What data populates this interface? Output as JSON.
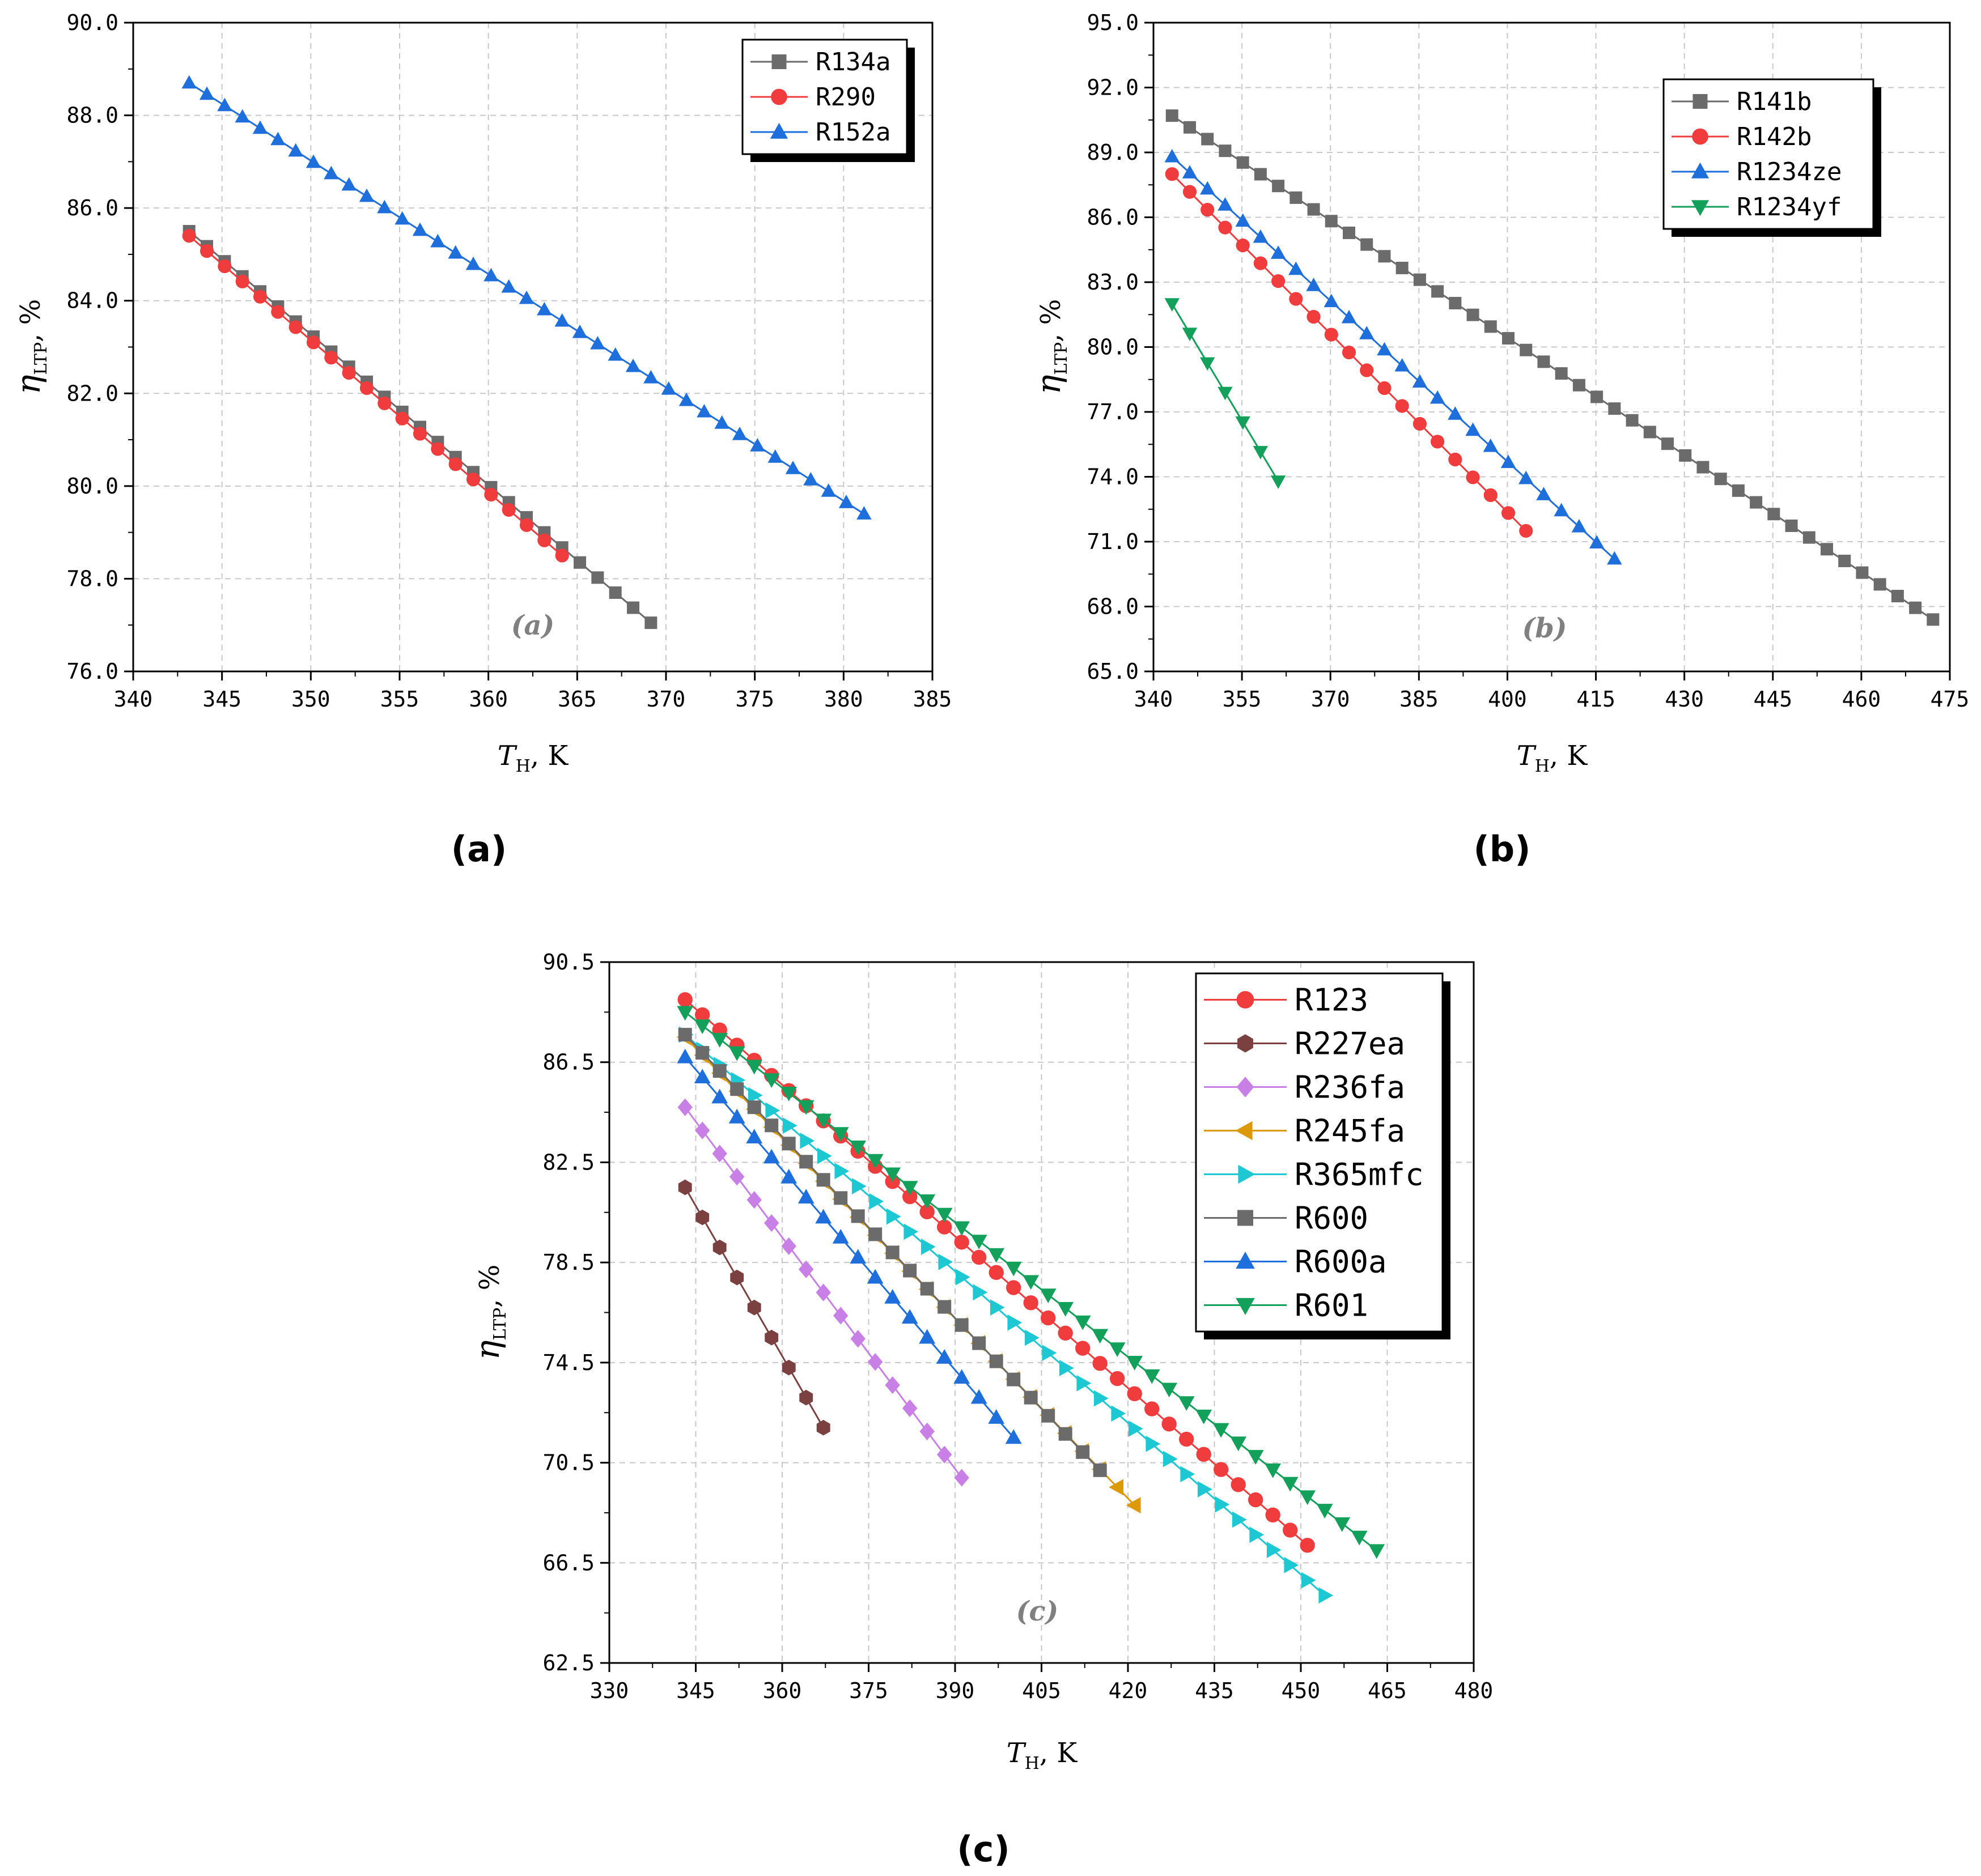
{
  "chart_data": [
    {
      "id": "a",
      "type": "line",
      "panel_label": "(a)",
      "tag": "(a)",
      "xlabel": "T",
      "xlabel_sub": "H",
      "xlabel_suffix": ", K",
      "ylabel": "η",
      "ylabel_sub": "LTP",
      "ylabel_suffix": ", %",
      "xlim": [
        340,
        385
      ],
      "ylim": [
        76,
        90
      ],
      "xticks": [
        340,
        345,
        350,
        355,
        360,
        365,
        370,
        375,
        380,
        385
      ],
      "xtick_labels": [
        "340",
        "345",
        "350",
        "355",
        "360",
        "365",
        "370",
        "375",
        "380",
        "385"
      ],
      "yticks": [
        76,
        78,
        80,
        82,
        84,
        86,
        88,
        90
      ],
      "ytick_labels": [
        "76.0",
        "78.0",
        "80.0",
        "82.0",
        "84.0",
        "86.0",
        "88.0",
        "90.0"
      ],
      "legend_position": "top-right",
      "series": [
        {
          "name": "R134a",
          "color": "#6b6b6b",
          "marker": "square",
          "x0": 343.15,
          "dx": 1,
          "count": 27,
          "y_start": 85.5,
          "y_end": 77.05
        },
        {
          "name": "R290",
          "color": "#f03c3c",
          "marker": "circle",
          "x0": 343.15,
          "dx": 1,
          "count": 22,
          "y_start": 85.4,
          "y_end": 78.5
        },
        {
          "name": "R152a",
          "color": "#1e6fdc",
          "marker": "triangle-up",
          "x0": 343.15,
          "dx": 1,
          "count": 39,
          "y_start": 88.7,
          "y_end": 79.4
        }
      ]
    },
    {
      "id": "b",
      "type": "line",
      "panel_label": "(b)",
      "tag": "(b)",
      "xlabel": "T",
      "xlabel_sub": "H",
      "xlabel_suffix": ", K",
      "ylabel": "η",
      "ylabel_sub": "LTP",
      "ylabel_suffix": ", %",
      "xlim": [
        340,
        475
      ],
      "ylim": [
        65,
        95
      ],
      "xticks": [
        340,
        355,
        370,
        385,
        400,
        415,
        430,
        445,
        460,
        475
      ],
      "xtick_labels": [
        "340",
        "355",
        "370",
        "385",
        "400",
        "415",
        "430",
        "445",
        "460",
        "475"
      ],
      "yticks": [
        65,
        68,
        71,
        74,
        77,
        80,
        83,
        86,
        89,
        92,
        95
      ],
      "ytick_labels": [
        "65.0",
        "68.0",
        "71.0",
        "74.0",
        "77.0",
        "80.0",
        "83.0",
        "86.0",
        "89.0",
        "92.0",
        "95.0"
      ],
      "legend_position": "top-right",
      "series": [
        {
          "name": "R141b",
          "color": "#6b6b6b",
          "marker": "square",
          "x0": 343.15,
          "dx": 3,
          "count": 44,
          "y_start": 90.7,
          "y_end": 67.4
        },
        {
          "name": "R142b",
          "color": "#f03c3c",
          "marker": "circle",
          "x0": 343.15,
          "dx": 3,
          "count": 21,
          "y_start": 88.0,
          "y_end": 71.5
        },
        {
          "name": "R1234ze",
          "color": "#1e6fdc",
          "marker": "triangle-up",
          "x0": 343.15,
          "dx": 3,
          "count": 26,
          "y_start": 88.8,
          "y_end": 70.2
        },
        {
          "name": "R1234yf",
          "color": "#13a05a",
          "marker": "triangle-down",
          "x0": 343.15,
          "dx": 3,
          "count": 7,
          "y_start": 82.0,
          "y_end": 73.8
        }
      ]
    },
    {
      "id": "c",
      "type": "line",
      "panel_label": "(c)",
      "tag": "(c)",
      "xlabel": "T",
      "xlabel_sub": "H",
      "xlabel_suffix": ", K",
      "ylabel": "η",
      "ylabel_sub": "LTP",
      "ylabel_suffix": ", %",
      "xlim": [
        330,
        480
      ],
      "ylim": [
        62.5,
        90.5
      ],
      "xticks": [
        330,
        345,
        360,
        375,
        390,
        405,
        420,
        435,
        450,
        465,
        480
      ],
      "xtick_labels": [
        "330",
        "345",
        "360",
        "375",
        "390",
        "405",
        "420",
        "435",
        "450",
        "465",
        "480"
      ],
      "yticks": [
        62.5,
        66.5,
        70.5,
        74.5,
        78.5,
        82.5,
        86.5,
        90.5
      ],
      "ytick_labels": [
        "62.5",
        "66.5",
        "70.5",
        "74.5",
        "78.5",
        "82.5",
        "86.5",
        "90.5"
      ],
      "legend_position": "top-right",
      "series": [
        {
          "name": "R123",
          "color": "#f03c3c",
          "marker": "circle",
          "x0": 343.15,
          "dx": 3,
          "count": 37,
          "y_start": 89.0,
          "y_end": 67.2
        },
        {
          "name": "R227ea",
          "color": "#7b4040",
          "marker": "hexagon",
          "x0": 343.15,
          "dx": 3,
          "count": 9,
          "y_start": 81.5,
          "y_end": 71.9
        },
        {
          "name": "R236fa",
          "color": "#c880e6",
          "marker": "diamond",
          "x0": 343.15,
          "dx": 3,
          "count": 17,
          "y_start": 84.7,
          "y_end": 69.9
        },
        {
          "name": "R245fa",
          "color": "#dc9a0a",
          "marker": "triangle-left",
          "x0": 343.15,
          "dx": 3,
          "count": 27,
          "y_start": 87.5,
          "y_end": 68.8
        },
        {
          "name": "R365mfc",
          "color": "#1ec8d2",
          "marker": "triangle-right",
          "x0": 343.15,
          "dx": 3,
          "count": 38,
          "y_start": 87.6,
          "y_end": 65.2
        },
        {
          "name": "R600",
          "color": "#6b6b6b",
          "marker": "square",
          "x0": 343.15,
          "dx": 3,
          "count": 25,
          "y_start": 87.6,
          "y_end": 70.2
        },
        {
          "name": "R600a",
          "color": "#1e6fdc",
          "marker": "triangle-up",
          "x0": 343.15,
          "dx": 3,
          "count": 20,
          "y_start": 86.7,
          "y_end": 71.5
        },
        {
          "name": "R601",
          "color": "#13a05a",
          "marker": "triangle-down",
          "x0": 343.15,
          "dx": 3,
          "count": 41,
          "y_start": 88.5,
          "y_end": 67.0
        }
      ]
    }
  ]
}
